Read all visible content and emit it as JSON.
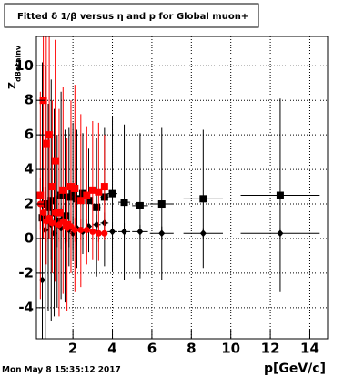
{
  "chart_data": {
    "type": "scatter",
    "title": "Fitted δ 1/β versus η and p for Global muon+",
    "y_label": "Z",
    "y_label_sub": "dBetainv",
    "x_label": "p[GeV/c]",
    "timestamp": "Mon May  8 15:35:12 2017",
    "xlim": [
      0.15,
      14.9
    ],
    "ylim": [
      -5.8,
      11.7
    ],
    "xticks": [
      2,
      4,
      6,
      8,
      10,
      12,
      14
    ],
    "yticks": [
      -4,
      -2,
      0,
      2,
      4,
      6,
      8,
      10
    ],
    "grid": true,
    "series": [
      {
        "color": "#000000",
        "marker": "square",
        "x": [
          0.45,
          0.6,
          0.75,
          0.9,
          1.05,
          1.2,
          1.4,
          1.6,
          1.8,
          2.0,
          2.2,
          2.5,
          2.8,
          3.2,
          3.6,
          4.0,
          4.6,
          5.4,
          6.5,
          8.6,
          12.5
        ],
        "y": [
          1.2,
          2.0,
          1.8,
          2.2,
          1.5,
          1.0,
          2.5,
          1.3,
          2.4,
          2.7,
          2.3,
          2.6,
          2.2,
          1.8,
          2.4,
          2.6,
          2.1,
          1.9,
          2.0,
          2.3,
          2.5
        ],
        "yerr": [
          9,
          8,
          6,
          7,
          6,
          5,
          6,
          5,
          4,
          4,
          4,
          3.5,
          3,
          4,
          4,
          4.5,
          4.5,
          4.2,
          4.4,
          4,
          5.6
        ],
        "xerr": [
          0.05,
          0.05,
          0.05,
          0.05,
          0.05,
          0.05,
          0.1,
          0.1,
          0.1,
          0.1,
          0.1,
          0.15,
          0.15,
          0.2,
          0.2,
          0.25,
          0.3,
          0.4,
          0.6,
          1.0,
          2.0
        ]
      },
      {
        "color": "#000000",
        "marker": "diamond",
        "x": [
          0.45,
          0.6,
          0.75,
          0.9,
          1.05,
          1.2,
          1.4,
          1.6,
          1.8,
          2.0,
          2.2,
          2.5,
          2.8,
          3.2,
          3.6,
          4.0,
          4.6,
          5.4,
          6.5,
          8.6,
          12.5
        ],
        "y": [
          -2.4,
          0.5,
          1.2,
          0.8,
          0.3,
          1.0,
          0.6,
          0.9,
          0.5,
          0.3,
          0.6,
          0.4,
          0.7,
          0.8,
          0.9,
          0.4,
          0.4,
          0.4,
          0.3,
          0.3,
          0.3
        ],
        "yerr": [
          3,
          2.5,
          2,
          2,
          1.5,
          1.5,
          1.2,
          1.2,
          1,
          1,
          1,
          0.8,
          0.8,
          0.6,
          0.6,
          0.5,
          0.5,
          0.4,
          0.4,
          0.3,
          0.3
        ],
        "xerr": [
          0.05,
          0.05,
          0.05,
          0.05,
          0.05,
          0.05,
          0.1,
          0.1,
          0.1,
          0.1,
          0.1,
          0.15,
          0.15,
          0.2,
          0.2,
          0.25,
          0.3,
          0.4,
          0.6,
          1.0,
          2.0
        ]
      },
      {
        "color": "#ff0000",
        "marker": "square",
        "x": [
          0.35,
          0.5,
          0.65,
          0.8,
          0.95,
          1.1,
          1.3,
          1.5,
          1.7,
          1.9,
          2.1,
          2.4,
          2.7,
          3.0,
          3.3,
          3.6
        ],
        "y": [
          2.5,
          8.0,
          5.5,
          6.0,
          3.0,
          4.5,
          1.5,
          2.8,
          0.8,
          3.0,
          2.9,
          2.2,
          2.5,
          2.8,
          2.7,
          3.0
        ],
        "yerr": [
          6,
          8,
          7,
          6,
          5,
          7,
          6,
          6,
          5,
          5,
          6,
          5,
          4,
          4,
          4,
          3
        ],
        "xerr": [
          0.05,
          0.05,
          0.05,
          0.05,
          0.05,
          0.05,
          0.1,
          0.1,
          0.1,
          0.1,
          0.1,
          0.15,
          0.15,
          0.15,
          0.15,
          0.15
        ]
      },
      {
        "color": "#ff0000",
        "marker": "circle",
        "x": [
          0.35,
          0.5,
          0.65,
          0.8,
          0.95,
          1.1,
          1.3,
          1.5,
          1.7,
          1.9,
          2.1,
          2.4,
          2.7,
          3.0,
          3.3,
          3.6
        ],
        "y": [
          2.0,
          1.5,
          1.0,
          1.2,
          0.9,
          1.5,
          0.8,
          1.0,
          0.6,
          0.7,
          0.5,
          0.5,
          0.5,
          0.4,
          0.3,
          0.3
        ],
        "yerr": [
          1.5,
          1.5,
          1.2,
          1.2,
          1,
          1,
          1,
          0.9,
          0.8,
          0.8,
          0.7,
          0.6,
          0.6,
          0.5,
          0.5,
          0.4
        ],
        "xerr": [
          0.05,
          0.05,
          0.05,
          0.05,
          0.05,
          0.05,
          0.1,
          0.1,
          0.1,
          0.1,
          0.1,
          0.15,
          0.15,
          0.15,
          0.15,
          0.15
        ]
      }
    ]
  }
}
